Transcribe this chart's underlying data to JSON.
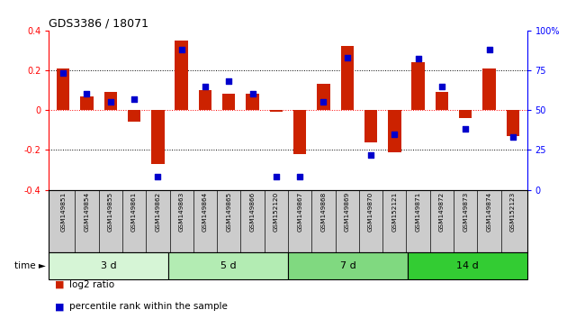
{
  "title": "GDS3386 / 18071",
  "samples": [
    "GSM149851",
    "GSM149854",
    "GSM149855",
    "GSM149861",
    "GSM149862",
    "GSM149863",
    "GSM149864",
    "GSM149865",
    "GSM149866",
    "GSM152120",
    "GSM149867",
    "GSM149868",
    "GSM149869",
    "GSM149870",
    "GSM152121",
    "GSM149871",
    "GSM149872",
    "GSM149873",
    "GSM149874",
    "GSM152123"
  ],
  "log2_ratio": [
    0.21,
    0.07,
    0.09,
    -0.06,
    -0.27,
    0.35,
    0.1,
    0.08,
    0.08,
    -0.01,
    -0.22,
    0.13,
    0.32,
    -0.16,
    -0.21,
    0.24,
    0.09,
    -0.04,
    0.21,
    -0.13
  ],
  "percentile_rank": [
    73,
    60,
    55,
    57,
    8,
    88,
    65,
    68,
    60,
    8,
    8,
    55,
    83,
    22,
    35,
    82,
    65,
    38,
    88,
    33
  ],
  "time_groups": [
    {
      "label": "3 d",
      "start": 0,
      "end": 5,
      "color": "#d6f5d6"
    },
    {
      "label": "5 d",
      "start": 5,
      "end": 10,
      "color": "#b3ecb3"
    },
    {
      "label": "7 d",
      "start": 10,
      "end": 15,
      "color": "#80d980"
    },
    {
      "label": "14 d",
      "start": 15,
      "end": 20,
      "color": "#33cc33"
    }
  ],
  "bar_color": "#cc2200",
  "dot_color": "#0000cc",
  "ylim_left": [
    -0.4,
    0.4
  ],
  "ylim_right": [
    0,
    100
  ],
  "yticks_left": [
    -0.4,
    -0.2,
    0.0,
    0.2,
    0.4
  ],
  "ytick_labels_left": [
    "-0.4",
    "-0.2",
    "0",
    "0.2",
    "0.4"
  ],
  "yticks_right": [
    0,
    25,
    50,
    75,
    100
  ],
  "ytick_labels_right": [
    "0",
    "25",
    "50",
    "75",
    "100%"
  ],
  "hlines_dotted": [
    0.2,
    -0.2
  ],
  "hline_red": 0.0,
  "bg_color": "#ffffff",
  "label_bg": "#cccccc"
}
